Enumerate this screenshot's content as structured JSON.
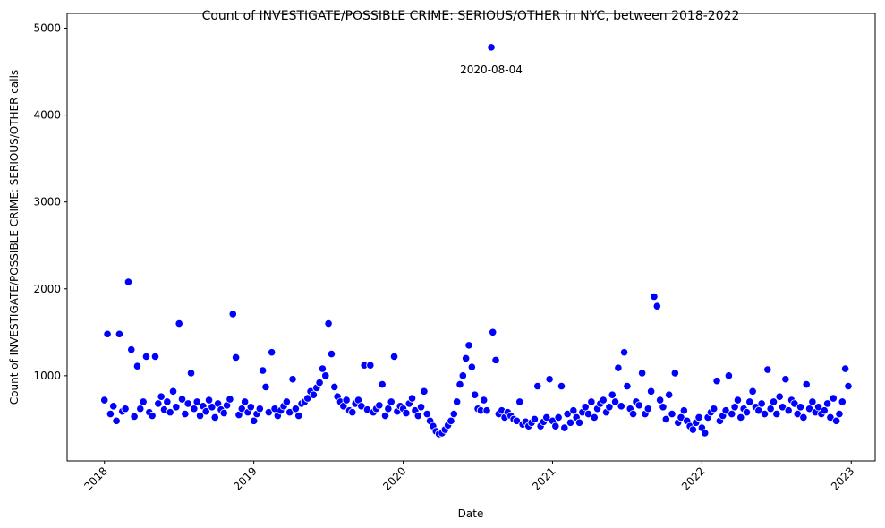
{
  "chart_data": {
    "type": "scatter",
    "title": "Count of INVESTIGATE/POSSIBLE CRIME: SERIOUS/OTHER in NYC, between 2018-2022",
    "x_label": "Date",
    "y_label": "Count of INVESTIGATE/POSSIBLE CRIME: SERIOUS/OTHER calls",
    "color": "#0000ff",
    "xlim": [
      2017.75,
      2023.16
    ],
    "ylim": [
      20,
      5170
    ],
    "xticks": [
      2018,
      2019,
      2020,
      2021,
      2022,
      2023
    ],
    "yticks": [
      1000,
      2000,
      3000,
      4000,
      5000
    ],
    "annotations": [
      {
        "text": "2020-08-04",
        "x": 2020.59,
        "y": 4520
      }
    ],
    "x": [
      2018.0,
      2018.02,
      2018.04,
      2018.06,
      2018.08,
      2018.1,
      2018.12,
      2018.14,
      2018.16,
      2018.18,
      2018.2,
      2018.22,
      2018.24,
      2018.26,
      2018.28,
      2018.3,
      2018.32,
      2018.34,
      2018.36,
      2018.38,
      2018.4,
      2018.42,
      2018.44,
      2018.46,
      2018.48,
      2018.5,
      2018.52,
      2018.54,
      2018.56,
      2018.58,
      2018.6,
      2018.62,
      2018.64,
      2018.66,
      2018.68,
      2018.7,
      2018.72,
      2018.74,
      2018.76,
      2018.78,
      2018.8,
      2018.82,
      2018.84,
      2018.86,
      2018.88,
      2018.9,
      2018.92,
      2018.94,
      2018.96,
      2018.98,
      2019.0,
      2019.02,
      2019.04,
      2019.06,
      2019.08,
      2019.1,
      2019.12,
      2019.14,
      2019.16,
      2019.18,
      2019.2,
      2019.22,
      2019.24,
      2019.26,
      2019.28,
      2019.3,
      2019.32,
      2019.34,
      2019.36,
      2019.38,
      2019.4,
      2019.42,
      2019.44,
      2019.46,
      2019.48,
      2019.5,
      2019.52,
      2019.54,
      2019.56,
      2019.58,
      2019.6,
      2019.62,
      2019.64,
      2019.66,
      2019.68,
      2019.7,
      2019.72,
      2019.74,
      2019.76,
      2019.78,
      2019.8,
      2019.82,
      2019.84,
      2019.86,
      2019.88,
      2019.9,
      2019.92,
      2019.94,
      2019.96,
      2019.98,
      2020.0,
      2020.02,
      2020.04,
      2020.06,
      2020.08,
      2020.1,
      2020.12,
      2020.14,
      2020.16,
      2020.18,
      2020.2,
      2020.22,
      2020.24,
      2020.26,
      2020.28,
      2020.3,
      2020.32,
      2020.34,
      2020.36,
      2020.38,
      2020.4,
      2020.42,
      2020.44,
      2020.46,
      2020.48,
      2020.5,
      2020.52,
      2020.54,
      2020.56,
      2020.59,
      2020.6,
      2020.62,
      2020.64,
      2020.66,
      2020.68,
      2020.7,
      2020.72,
      2020.74,
      2020.76,
      2020.78,
      2020.8,
      2020.82,
      2020.84,
      2020.86,
      2020.88,
      2020.9,
      2020.92,
      2020.94,
      2020.96,
      2020.98,
      2021.0,
      2021.02,
      2021.04,
      2021.06,
      2021.08,
      2021.1,
      2021.12,
      2021.14,
      2021.16,
      2021.18,
      2021.2,
      2021.22,
      2021.24,
      2021.26,
      2021.28,
      2021.3,
      2021.32,
      2021.34,
      2021.36,
      2021.38,
      2021.4,
      2021.42,
      2021.44,
      2021.46,
      2021.48,
      2021.5,
      2021.52,
      2021.54,
      2021.56,
      2021.58,
      2021.6,
      2021.62,
      2021.64,
      2021.66,
      2021.68,
      2021.7,
      2021.72,
      2021.74,
      2021.76,
      2021.78,
      2021.8,
      2021.82,
      2021.84,
      2021.86,
      2021.88,
      2021.9,
      2021.92,
      2021.94,
      2021.96,
      2021.98,
      2022.0,
      2022.02,
      2022.04,
      2022.06,
      2022.08,
      2022.1,
      2022.12,
      2022.14,
      2022.16,
      2022.18,
      2022.2,
      2022.22,
      2022.24,
      2022.26,
      2022.28,
      2022.3,
      2022.32,
      2022.34,
      2022.36,
      2022.38,
      2022.4,
      2022.42,
      2022.44,
      2022.46,
      2022.48,
      2022.5,
      2022.52,
      2022.54,
      2022.56,
      2022.58,
      2022.6,
      2022.62,
      2022.64,
      2022.66,
      2022.68,
      2022.7,
      2022.72,
      2022.74,
      2022.76,
      2022.78,
      2022.8,
      2022.82,
      2022.84,
      2022.86,
      2022.88,
      2022.9,
      2022.92,
      2022.94,
      2022.96,
      2022.98
    ],
    "values": [
      720,
      1480,
      560,
      650,
      480,
      1480,
      590,
      620,
      2080,
      1300,
      530,
      1110,
      620,
      700,
      1220,
      580,
      540,
      1220,
      680,
      760,
      610,
      700,
      580,
      820,
      640,
      1600,
      730,
      560,
      680,
      1030,
      620,
      700,
      540,
      650,
      590,
      720,
      640,
      520,
      680,
      610,
      570,
      660,
      730,
      1710,
      1210,
      550,
      620,
      700,
      580,
      640,
      480,
      560,
      620,
      1060,
      870,
      580,
      1270,
      620,
      540,
      600,
      650,
      700,
      580,
      960,
      620,
      540,
      680,
      700,
      740,
      820,
      780,
      860,
      920,
      1080,
      1000,
      1600,
      1250,
      870,
      760,
      700,
      650,
      720,
      600,
      580,
      680,
      720,
      650,
      1120,
      610,
      1120,
      580,
      620,
      660,
      900,
      540,
      620,
      700,
      1220,
      590,
      650,
      620,
      570,
      680,
      740,
      600,
      540,
      640,
      820,
      560,
      480,
      420,
      360,
      330,
      340,
      380,
      430,
      480,
      560,
      700,
      900,
      1000,
      1200,
      1350,
      1100,
      780,
      620,
      600,
      720,
      600,
      4780,
      1500,
      1180,
      560,
      600,
      520,
      580,
      540,
      500,
      480,
      700,
      440,
      470,
      420,
      460,
      500,
      880,
      420,
      470,
      520,
      960,
      480,
      420,
      520,
      880,
      400,
      560,
      460,
      600,
      520,
      460,
      580,
      640,
      560,
      700,
      520,
      620,
      680,
      720,
      580,
      640,
      780,
      700,
      1090,
      650,
      1270,
      880,
      620,
      560,
      700,
      660,
      1030,
      560,
      620,
      820,
      1910,
      1800,
      720,
      640,
      500,
      780,
      560,
      1030,
      460,
      520,
      600,
      480,
      420,
      380,
      460,
      520,
      400,
      340,
      520,
      580,
      620,
      940,
      480,
      540,
      600,
      1000,
      560,
      640,
      720,
      520,
      620,
      580,
      700,
      820,
      640,
      600,
      680,
      560,
      1070,
      620,
      700,
      560,
      760,
      640,
      960,
      600,
      720,
      680,
      560,
      640,
      520,
      900,
      620,
      700,
      580,
      640,
      560,
      600,
      680,
      520,
      740,
      480,
      560,
      700,
      1080,
      880
    ]
  }
}
